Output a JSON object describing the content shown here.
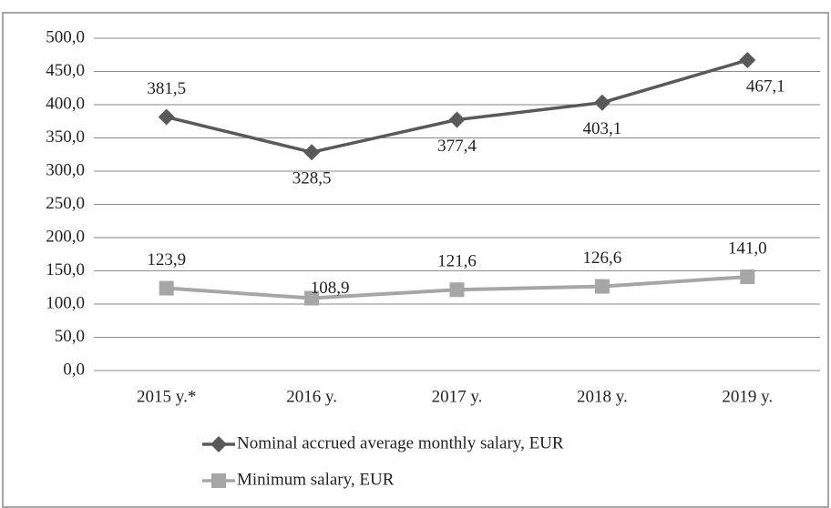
{
  "chart_data": {
    "type": "line",
    "categories": [
      "2015 y.*",
      "2016 y.",
      "2017 y.",
      "2018 y.",
      "2019 y."
    ],
    "series": [
      {
        "name": "Nominal accrued average monthly salary, EUR",
        "color": "#595959",
        "marker": "diamond",
        "values": [
          381.5,
          328.5,
          377.4,
          403.1,
          467.1
        ],
        "value_labels": [
          "381,5",
          "328,5",
          "377,4",
          "403,1",
          "467,1"
        ]
      },
      {
        "name": "Minimum salary, EUR",
        "color": "#a6a6a6",
        "marker": "square",
        "values": [
          123.9,
          108.9,
          121.6,
          126.6,
          141.0
        ],
        "value_labels": [
          "123,9",
          "108,9",
          "121,6",
          "126,6",
          "141,0"
        ]
      }
    ],
    "ylim": [
      0,
      500
    ],
    "yticks": [
      {
        "value": 0,
        "label": "0,0"
      },
      {
        "value": 50,
        "label": "50,0"
      },
      {
        "value": 100,
        "label": "100,0"
      },
      {
        "value": 150,
        "label": "150,0"
      },
      {
        "value": 200,
        "label": "200,0"
      },
      {
        "value": 250,
        "label": "250,0"
      },
      {
        "value": 300,
        "label": "300,0"
      },
      {
        "value": 350,
        "label": "350,0"
      },
      {
        "value": 400,
        "label": "400,0"
      },
      {
        "value": 450,
        "label": "450,0"
      },
      {
        "value": 500,
        "label": "500,0"
      }
    ],
    "grid": true,
    "legend": "bottom"
  }
}
